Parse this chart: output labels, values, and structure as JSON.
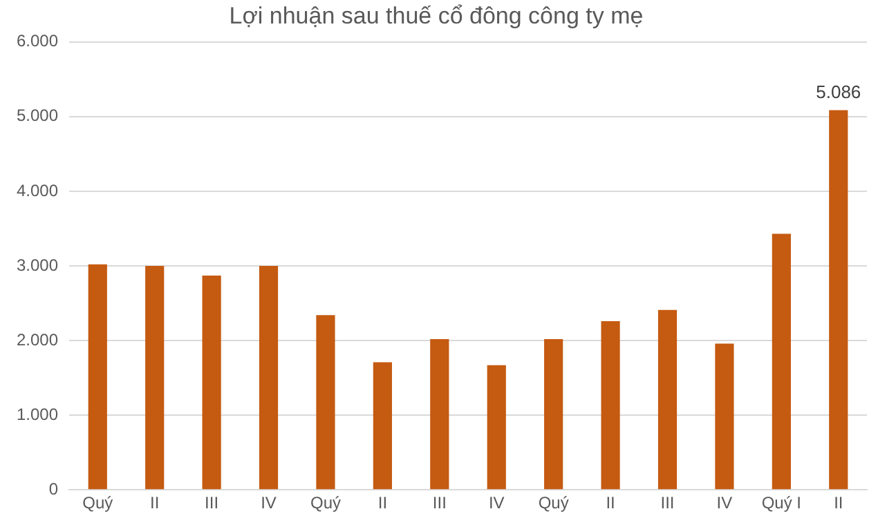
{
  "chart_data": {
    "type": "bar",
    "title": "Lợi nhuận sau thuế cổ đông công ty mẹ",
    "categories": [
      "Quý",
      "II",
      "III",
      "IV",
      "Quý",
      "II",
      "III",
      "IV",
      "Quý",
      "II",
      "III",
      "IV",
      "Quý I",
      "II"
    ],
    "values": [
      3020,
      3000,
      2870,
      3000,
      2340,
      1710,
      2020,
      1670,
      2020,
      2260,
      2410,
      1960,
      3430,
      5086
    ],
    "value_labels": [
      null,
      null,
      null,
      null,
      null,
      null,
      null,
      null,
      null,
      null,
      null,
      null,
      null,
      "5.086"
    ],
    "color": "#c55a11",
    "ylim": [
      0,
      6000
    ],
    "yticks": [
      {
        "value": 0,
        "label": "0"
      },
      {
        "value": 1000,
        "label": "1.000"
      },
      {
        "value": 2000,
        "label": "2.000"
      },
      {
        "value": 3000,
        "label": "3.000"
      },
      {
        "value": 4000,
        "label": "4.000"
      },
      {
        "value": 5000,
        "label": "5.000"
      },
      {
        "value": 6000,
        "label": "6.000"
      }
    ],
    "grid": "y",
    "legend": false
  }
}
